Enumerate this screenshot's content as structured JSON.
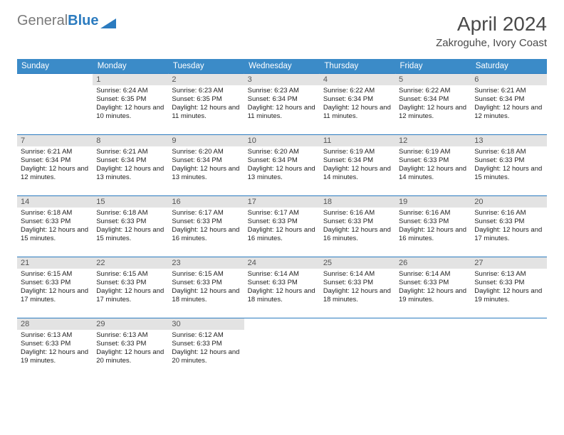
{
  "logo": {
    "text_gray": "General",
    "text_blue": "Blue"
  },
  "title": "April 2024",
  "location": "Zakroguhe, Ivory Coast",
  "colors": {
    "header_bg": "#3b8bc8",
    "header_text": "#ffffff",
    "daynum_bg": "#e3e3e3",
    "border": "#2b7bbf",
    "title_color": "#4a4a4a"
  },
  "dayNames": [
    "Sunday",
    "Monday",
    "Tuesday",
    "Wednesday",
    "Thursday",
    "Friday",
    "Saturday"
  ],
  "weeks": [
    [
      {
        "n": "",
        "sr": "",
        "ss": "",
        "dl": ""
      },
      {
        "n": "1",
        "sr": "Sunrise: 6:24 AM",
        "ss": "Sunset: 6:35 PM",
        "dl": "Daylight: 12 hours and 10 minutes."
      },
      {
        "n": "2",
        "sr": "Sunrise: 6:23 AM",
        "ss": "Sunset: 6:35 PM",
        "dl": "Daylight: 12 hours and 11 minutes."
      },
      {
        "n": "3",
        "sr": "Sunrise: 6:23 AM",
        "ss": "Sunset: 6:34 PM",
        "dl": "Daylight: 12 hours and 11 minutes."
      },
      {
        "n": "4",
        "sr": "Sunrise: 6:22 AM",
        "ss": "Sunset: 6:34 PM",
        "dl": "Daylight: 12 hours and 11 minutes."
      },
      {
        "n": "5",
        "sr": "Sunrise: 6:22 AM",
        "ss": "Sunset: 6:34 PM",
        "dl": "Daylight: 12 hours and 12 minutes."
      },
      {
        "n": "6",
        "sr": "Sunrise: 6:21 AM",
        "ss": "Sunset: 6:34 PM",
        "dl": "Daylight: 12 hours and 12 minutes."
      }
    ],
    [
      {
        "n": "7",
        "sr": "Sunrise: 6:21 AM",
        "ss": "Sunset: 6:34 PM",
        "dl": "Daylight: 12 hours and 12 minutes."
      },
      {
        "n": "8",
        "sr": "Sunrise: 6:21 AM",
        "ss": "Sunset: 6:34 PM",
        "dl": "Daylight: 12 hours and 13 minutes."
      },
      {
        "n": "9",
        "sr": "Sunrise: 6:20 AM",
        "ss": "Sunset: 6:34 PM",
        "dl": "Daylight: 12 hours and 13 minutes."
      },
      {
        "n": "10",
        "sr": "Sunrise: 6:20 AM",
        "ss": "Sunset: 6:34 PM",
        "dl": "Daylight: 12 hours and 13 minutes."
      },
      {
        "n": "11",
        "sr": "Sunrise: 6:19 AM",
        "ss": "Sunset: 6:34 PM",
        "dl": "Daylight: 12 hours and 14 minutes."
      },
      {
        "n": "12",
        "sr": "Sunrise: 6:19 AM",
        "ss": "Sunset: 6:33 PM",
        "dl": "Daylight: 12 hours and 14 minutes."
      },
      {
        "n": "13",
        "sr": "Sunrise: 6:18 AM",
        "ss": "Sunset: 6:33 PM",
        "dl": "Daylight: 12 hours and 15 minutes."
      }
    ],
    [
      {
        "n": "14",
        "sr": "Sunrise: 6:18 AM",
        "ss": "Sunset: 6:33 PM",
        "dl": "Daylight: 12 hours and 15 minutes."
      },
      {
        "n": "15",
        "sr": "Sunrise: 6:18 AM",
        "ss": "Sunset: 6:33 PM",
        "dl": "Daylight: 12 hours and 15 minutes."
      },
      {
        "n": "16",
        "sr": "Sunrise: 6:17 AM",
        "ss": "Sunset: 6:33 PM",
        "dl": "Daylight: 12 hours and 16 minutes."
      },
      {
        "n": "17",
        "sr": "Sunrise: 6:17 AM",
        "ss": "Sunset: 6:33 PM",
        "dl": "Daylight: 12 hours and 16 minutes."
      },
      {
        "n": "18",
        "sr": "Sunrise: 6:16 AM",
        "ss": "Sunset: 6:33 PM",
        "dl": "Daylight: 12 hours and 16 minutes."
      },
      {
        "n": "19",
        "sr": "Sunrise: 6:16 AM",
        "ss": "Sunset: 6:33 PM",
        "dl": "Daylight: 12 hours and 16 minutes."
      },
      {
        "n": "20",
        "sr": "Sunrise: 6:16 AM",
        "ss": "Sunset: 6:33 PM",
        "dl": "Daylight: 12 hours and 17 minutes."
      }
    ],
    [
      {
        "n": "21",
        "sr": "Sunrise: 6:15 AM",
        "ss": "Sunset: 6:33 PM",
        "dl": "Daylight: 12 hours and 17 minutes."
      },
      {
        "n": "22",
        "sr": "Sunrise: 6:15 AM",
        "ss": "Sunset: 6:33 PM",
        "dl": "Daylight: 12 hours and 17 minutes."
      },
      {
        "n": "23",
        "sr": "Sunrise: 6:15 AM",
        "ss": "Sunset: 6:33 PM",
        "dl": "Daylight: 12 hours and 18 minutes."
      },
      {
        "n": "24",
        "sr": "Sunrise: 6:14 AM",
        "ss": "Sunset: 6:33 PM",
        "dl": "Daylight: 12 hours and 18 minutes."
      },
      {
        "n": "25",
        "sr": "Sunrise: 6:14 AM",
        "ss": "Sunset: 6:33 PM",
        "dl": "Daylight: 12 hours and 18 minutes."
      },
      {
        "n": "26",
        "sr": "Sunrise: 6:14 AM",
        "ss": "Sunset: 6:33 PM",
        "dl": "Daylight: 12 hours and 19 minutes."
      },
      {
        "n": "27",
        "sr": "Sunrise: 6:13 AM",
        "ss": "Sunset: 6:33 PM",
        "dl": "Daylight: 12 hours and 19 minutes."
      }
    ],
    [
      {
        "n": "28",
        "sr": "Sunrise: 6:13 AM",
        "ss": "Sunset: 6:33 PM",
        "dl": "Daylight: 12 hours and 19 minutes."
      },
      {
        "n": "29",
        "sr": "Sunrise: 6:13 AM",
        "ss": "Sunset: 6:33 PM",
        "dl": "Daylight: 12 hours and 20 minutes."
      },
      {
        "n": "30",
        "sr": "Sunrise: 6:12 AM",
        "ss": "Sunset: 6:33 PM",
        "dl": "Daylight: 12 hours and 20 minutes."
      },
      {
        "n": "",
        "sr": "",
        "ss": "",
        "dl": ""
      },
      {
        "n": "",
        "sr": "",
        "ss": "",
        "dl": ""
      },
      {
        "n": "",
        "sr": "",
        "ss": "",
        "dl": ""
      },
      {
        "n": "",
        "sr": "",
        "ss": "",
        "dl": ""
      }
    ]
  ]
}
